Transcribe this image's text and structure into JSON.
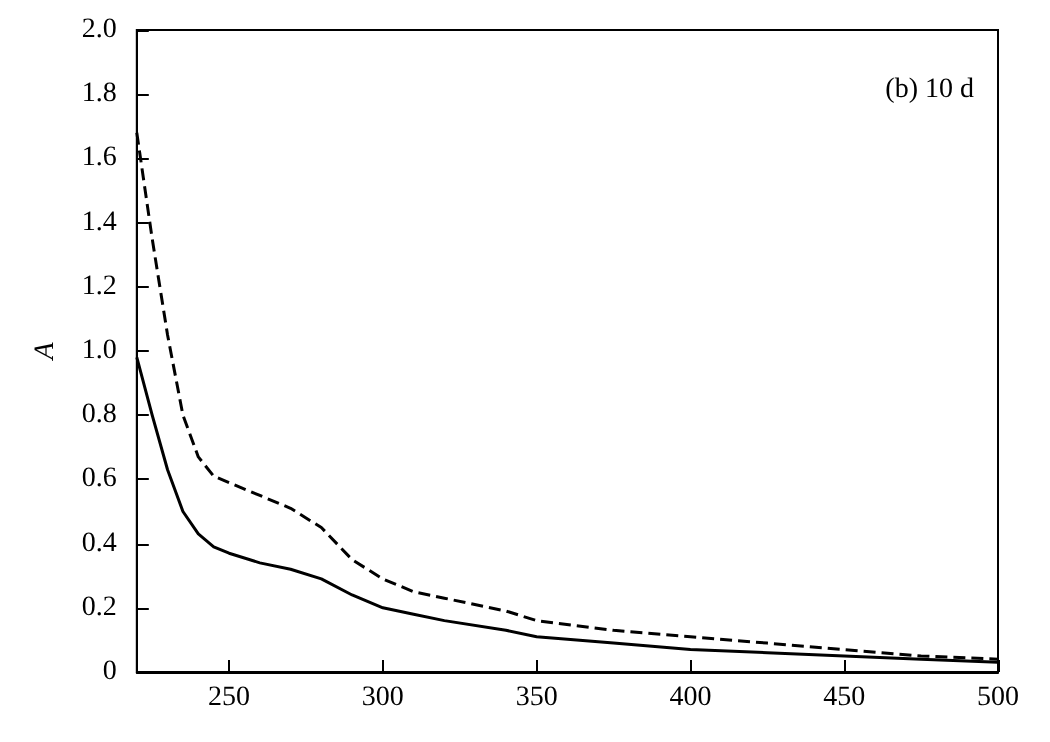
{
  "chart_data": {
    "type": "line",
    "ylabel": "A",
    "annotations": [
      "(b) 10 d"
    ],
    "x": [
      220,
      225,
      230,
      235,
      240,
      245,
      250,
      260,
      270,
      280,
      290,
      300,
      310,
      320,
      340,
      350,
      375,
      400,
      425,
      450,
      475,
      500
    ],
    "series": [
      {
        "color": "#000000",
        "line_style": "solid",
        "values": [
          0.98,
          0.8,
          0.63,
          0.5,
          0.43,
          0.39,
          0.37,
          0.34,
          0.32,
          0.29,
          0.24,
          0.2,
          0.18,
          0.16,
          0.13,
          0.11,
          0.09,
          0.07,
          0.06,
          0.05,
          0.04,
          0.03
        ]
      },
      {
        "color": "#000000",
        "line_style": "dashed",
        "values": [
          1.68,
          1.35,
          1.05,
          0.8,
          0.67,
          0.61,
          0.59,
          0.55,
          0.51,
          0.45,
          0.35,
          0.29,
          0.25,
          0.23,
          0.19,
          0.16,
          0.13,
          0.11,
          0.09,
          0.07,
          0.05,
          0.04
        ]
      }
    ],
    "xlim": [
      220,
      500
    ],
    "xticks": [
      250,
      300,
      350,
      400,
      450,
      500
    ],
    "ylim": [
      0,
      2
    ],
    "yticks": [
      0,
      0.2,
      0.4,
      0.6,
      0.8,
      {
        "value": 1,
        "label": "1.0"
      },
      1.2,
      1.4,
      1.6,
      1.8,
      {
        "value": 2,
        "label": "2.0"
      }
    ],
    "grid": false,
    "marker": "none"
  }
}
